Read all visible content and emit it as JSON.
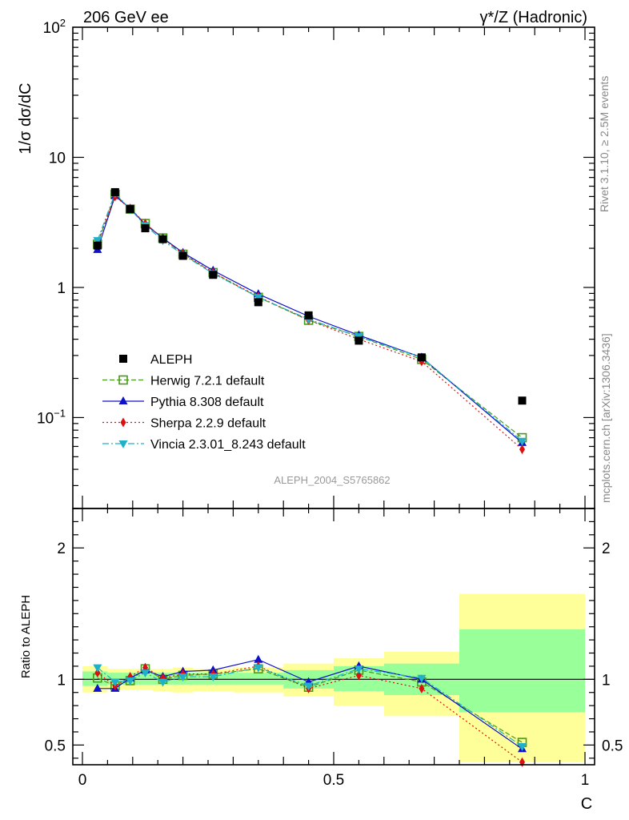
{
  "header": {
    "left": "206 GeV ee",
    "right": "γ*/Z (Hadronic)"
  },
  "side_texts": {
    "top": "Rivet 3.1.10, ≥ 2.5M events",
    "bottom": "mcplots.cern.ch [arXiv:1306.3436]"
  },
  "watermark": "ALEPH_2004_S5765862",
  "colors": {
    "data": "#000000",
    "herwig": "#4a9a1a",
    "pythia": "#1010c8",
    "sherpa": "#dd1010",
    "vincia": "#20b0c8",
    "band_inner": "#99ff99",
    "band_outer": "#ffff99"
  },
  "chart_data": [
    {
      "type": "scatter",
      "title": "",
      "ylabel": "1/σ  dσ/dC",
      "xlabel": "",
      "yscale": "log",
      "xlim": [
        0,
        1
      ],
      "ylim": [
        0.02,
        100
      ],
      "yticks": [
        {
          "value": 100,
          "label": "10",
          "sup": "2"
        },
        {
          "value": 10,
          "label": "10",
          "sup": ""
        },
        {
          "value": 1,
          "label": "1",
          "sup": ""
        },
        {
          "value": 0.1,
          "label": "10",
          "sup": "−1"
        }
      ],
      "legend_placement": "middle-left",
      "x": [
        0.03,
        0.065,
        0.095,
        0.125,
        0.16,
        0.2,
        0.26,
        0.35,
        0.45,
        0.55,
        0.675,
        0.875
      ],
      "series": [
        {
          "name": "ALEPH",
          "key": "data",
          "marker": "square",
          "line": "none",
          "values": [
            2.1,
            5.4,
            4.0,
            2.85,
            2.35,
            1.75,
            1.25,
            0.77,
            0.61,
            0.39,
            0.29,
            0.135
          ]
        },
        {
          "name": "Herwig 7.2.1 default",
          "key": "herwig",
          "marker": "open-square",
          "line": "dashed",
          "values": [
            2.15,
            5.2,
            4.0,
            3.1,
            2.4,
            1.8,
            1.3,
            0.84,
            0.56,
            0.42,
            0.28,
            0.07
          ]
        },
        {
          "name": "Pythia 8.308 default",
          "key": "pythia",
          "marker": "triangle-up",
          "line": "solid",
          "values": [
            1.95,
            5.05,
            4.05,
            3.05,
            2.4,
            1.85,
            1.35,
            0.89,
            0.6,
            0.43,
            0.29,
            0.064
          ]
        },
        {
          "name": "Sherpa 2.2.9 default",
          "key": "sherpa",
          "marker": "diamond",
          "line": "dotted",
          "values": [
            2.2,
            5.0,
            4.05,
            3.1,
            2.38,
            1.82,
            1.3,
            0.85,
            0.56,
            0.4,
            0.27,
            0.057
          ]
        },
        {
          "name": "Vincia 2.3.01_8.243 default",
          "key": "vincia",
          "marker": "triangle-down",
          "line": "dashdot",
          "values": [
            2.3,
            5.3,
            4.0,
            3.0,
            2.3,
            1.78,
            1.28,
            0.84,
            0.57,
            0.42,
            0.29,
            0.066
          ]
        }
      ]
    },
    {
      "type": "scatter",
      "title": "",
      "ylabel": "Ratio to ALEPH",
      "xlabel": "C",
      "xlim": [
        0,
        1
      ],
      "ylim": [
        0.35,
        2.3
      ],
      "yticks": [
        0.5,
        1,
        2
      ],
      "xticks": [
        {
          "value": 0,
          "label": "0"
        },
        {
          "value": 0.5,
          "label": "0.5"
        },
        {
          "value": 1,
          "label": "1"
        }
      ],
      "bands": [
        {
          "x0": 0.0,
          "x1": 0.05,
          "inner": [
            0.95,
            1.06
          ],
          "outer": [
            0.9,
            1.1
          ]
        },
        {
          "x0": 0.05,
          "x1": 0.08,
          "inner": [
            0.96,
            1.05
          ],
          "outer": [
            0.92,
            1.08
          ]
        },
        {
          "x0": 0.08,
          "x1": 0.11,
          "inner": [
            0.96,
            1.05
          ],
          "outer": [
            0.92,
            1.08
          ]
        },
        {
          "x0": 0.11,
          "x1": 0.14,
          "inner": [
            0.96,
            1.05
          ],
          "outer": [
            0.92,
            1.08
          ]
        },
        {
          "x0": 0.14,
          "x1": 0.18,
          "inner": [
            0.96,
            1.05
          ],
          "outer": [
            0.91,
            1.08
          ]
        },
        {
          "x0": 0.18,
          "x1": 0.22,
          "inner": [
            0.96,
            1.05
          ],
          "outer": [
            0.9,
            1.09
          ]
        },
        {
          "x0": 0.22,
          "x1": 0.3,
          "inner": [
            0.96,
            1.05
          ],
          "outer": [
            0.91,
            1.08
          ]
        },
        {
          "x0": 0.3,
          "x1": 0.4,
          "inner": [
            0.96,
            1.05
          ],
          "outer": [
            0.9,
            1.09
          ]
        },
        {
          "x0": 0.4,
          "x1": 0.5,
          "inner": [
            0.93,
            1.07
          ],
          "outer": [
            0.87,
            1.12
          ]
        },
        {
          "x0": 0.5,
          "x1": 0.6,
          "inner": [
            0.91,
            1.1
          ],
          "outer": [
            0.8,
            1.16
          ]
        },
        {
          "x0": 0.6,
          "x1": 0.75,
          "inner": [
            0.88,
            1.12
          ],
          "outer": [
            0.72,
            1.21
          ]
        },
        {
          "x0": 0.75,
          "x1": 1.0,
          "inner": [
            0.75,
            1.38
          ],
          "outer": [
            0.37,
            1.65
          ]
        }
      ],
      "x": [
        0.03,
        0.065,
        0.095,
        0.125,
        0.16,
        0.2,
        0.26,
        0.35,
        0.45,
        0.55,
        0.675,
        0.875
      ],
      "series": [
        {
          "name": "Herwig 7.2.1 default",
          "key": "herwig",
          "marker": "open-square",
          "line": "dashed",
          "values": [
            1.01,
            0.95,
            0.99,
            1.08,
            1.0,
            1.03,
            1.04,
            1.08,
            0.94,
            1.07,
            0.98,
            0.52
          ]
        },
        {
          "name": "Pythia 8.308 default",
          "key": "pythia",
          "marker": "triangle-up",
          "line": "solid",
          "values": [
            0.93,
            0.93,
            1.01,
            1.07,
            1.02,
            1.06,
            1.07,
            1.15,
            0.98,
            1.1,
            1.0,
            0.47
          ]
        },
        {
          "name": "Sherpa 2.2.9 default",
          "key": "sherpa",
          "marker": "diamond",
          "line": "dotted",
          "values": [
            1.05,
            0.95,
            1.02,
            1.09,
            1.01,
            1.04,
            1.04,
            1.1,
            0.93,
            1.03,
            0.93,
            0.37
          ]
        },
        {
          "name": "Vincia 2.3.01_8.243 default",
          "key": "vincia",
          "marker": "triangle-down",
          "line": "dashdot",
          "values": [
            1.09,
            0.98,
            0.99,
            1.05,
            0.98,
            1.02,
            1.02,
            1.09,
            0.95,
            1.08,
            1.01,
            0.49
          ]
        }
      ]
    }
  ]
}
